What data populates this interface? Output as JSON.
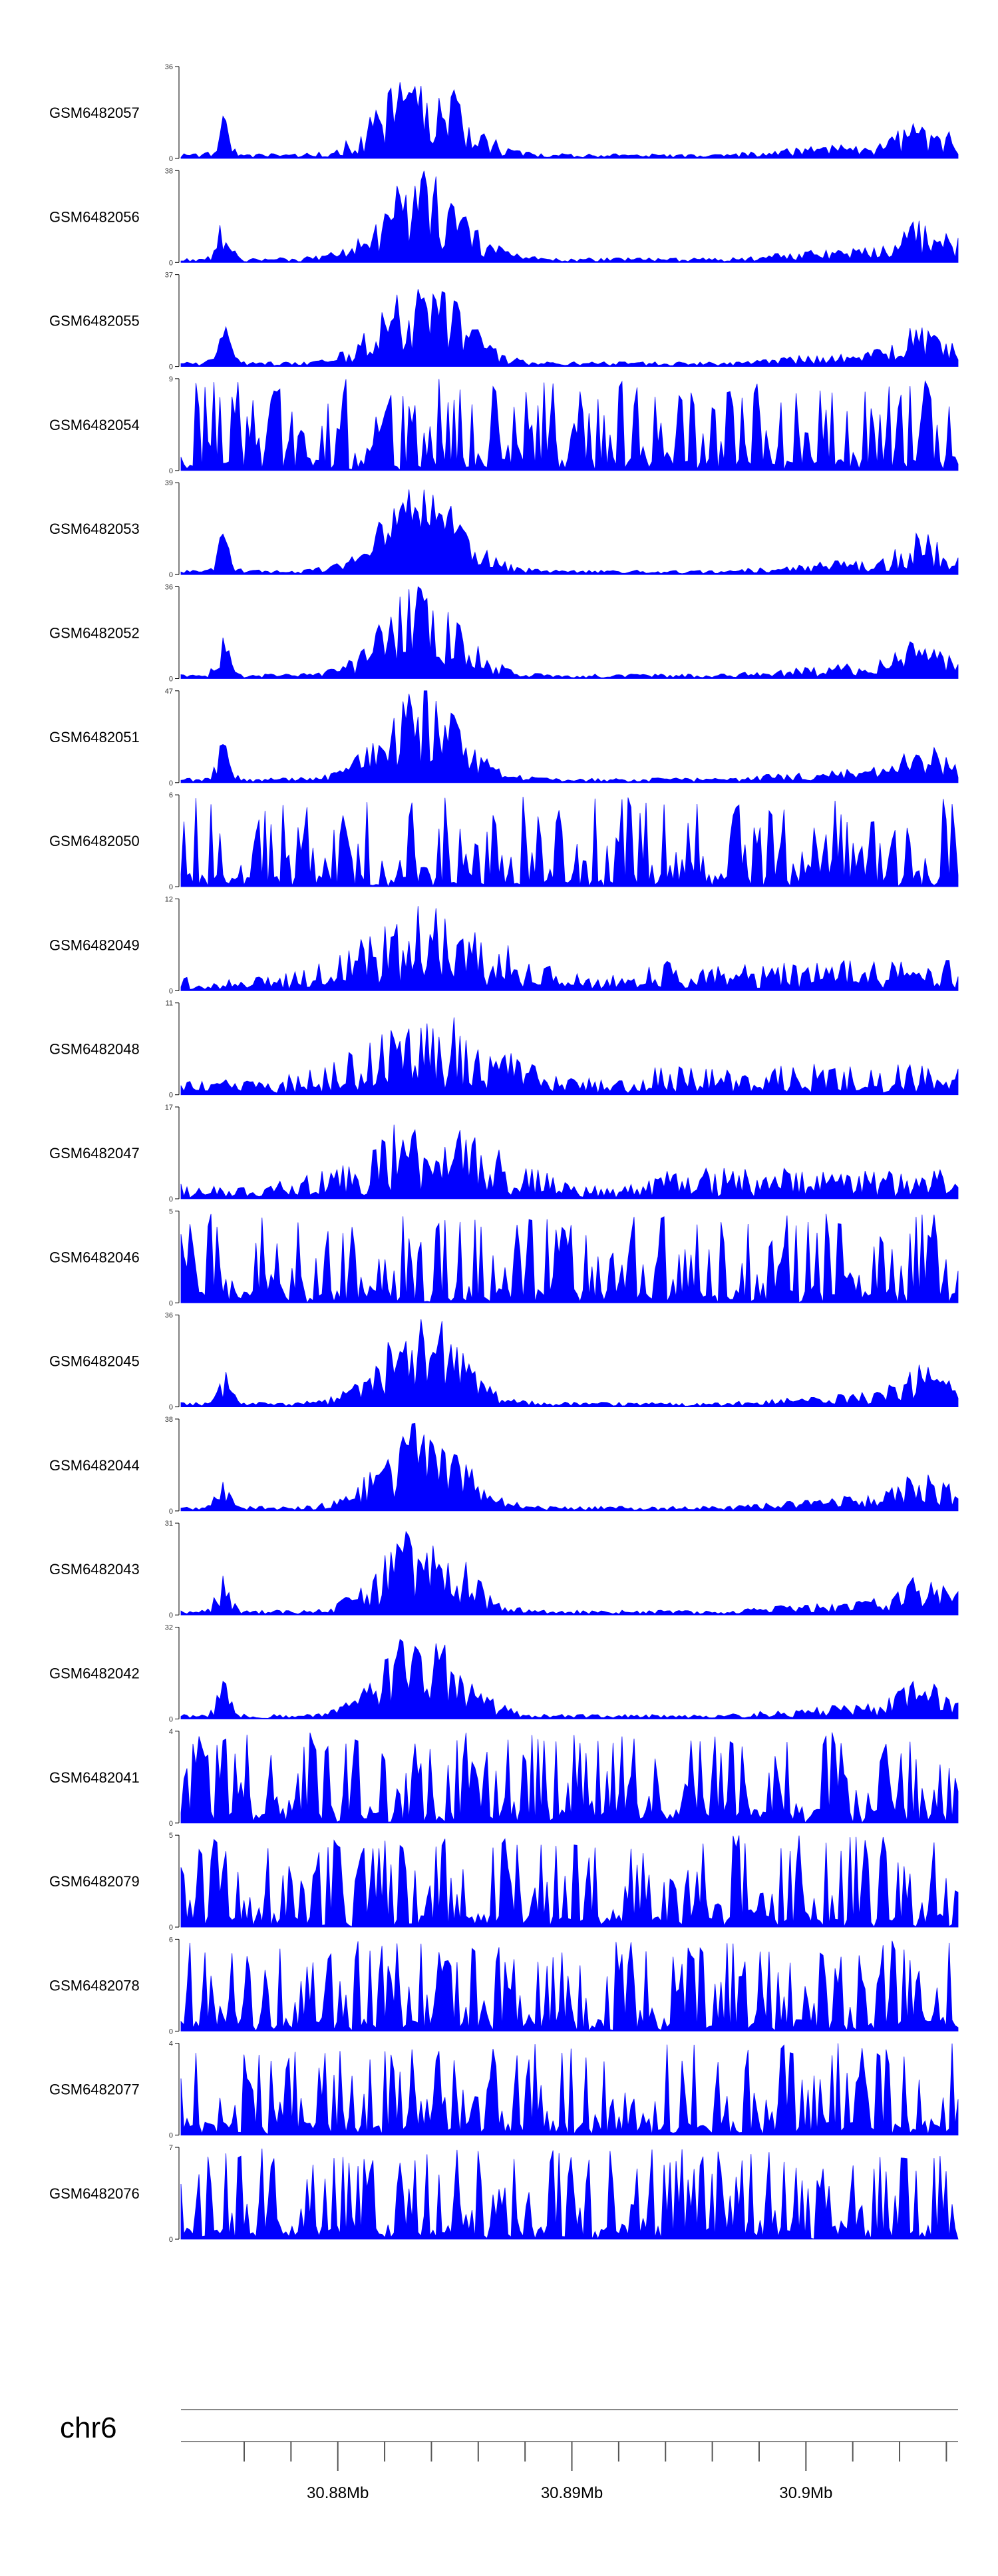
{
  "chart_data": {
    "type": "area",
    "title": "",
    "chromosome": "chr6",
    "x_unit": "Mb",
    "xlim": [
      30.8733,
      30.9065
    ],
    "x_tick_labels": [
      "30.88Mb",
      "30.89Mb",
      "30.9Mb"
    ],
    "x_major_ticks": [
      30.88,
      30.89,
      30.9
    ],
    "x_minor_ticks": [
      30.876,
      30.878,
      30.882,
      30.884,
      30.886,
      30.888,
      30.892,
      30.894,
      30.896,
      30.898,
      30.902,
      30.904,
      30.906
    ],
    "fill_color": "#0000ff",
    "tracks": [
      {
        "name": "GSM6482057",
        "ymin": 0,
        "ymax": 36,
        "profile": "peak",
        "seed": 1
      },
      {
        "name": "GSM6482056",
        "ymin": 0,
        "ymax": 38,
        "profile": "peak",
        "seed": 2
      },
      {
        "name": "GSM6482055",
        "ymin": 0,
        "ymax": 37,
        "profile": "peak",
        "seed": 3
      },
      {
        "name": "GSM6482054",
        "ymin": 0,
        "ymax": 9,
        "profile": "noise",
        "seed": 4
      },
      {
        "name": "GSM6482053",
        "ymin": 0,
        "ymax": 39,
        "profile": "peak",
        "seed": 5
      },
      {
        "name": "GSM6482052",
        "ymin": 0,
        "ymax": 36,
        "profile": "peak",
        "seed": 6
      },
      {
        "name": "GSM6482051",
        "ymin": 0,
        "ymax": 47,
        "profile": "peak",
        "seed": 7
      },
      {
        "name": "GSM6482050",
        "ymin": 0,
        "ymax": 6,
        "profile": "noise",
        "seed": 8
      },
      {
        "name": "GSM6482049",
        "ymin": 0,
        "ymax": 12,
        "profile": "broad",
        "seed": 9
      },
      {
        "name": "GSM6482048",
        "ymin": 0,
        "ymax": 11,
        "profile": "broad",
        "seed": 10
      },
      {
        "name": "GSM6482047",
        "ymin": 0,
        "ymax": 17,
        "profile": "broad",
        "seed": 11
      },
      {
        "name": "GSM6482046",
        "ymin": 0,
        "ymax": 5,
        "profile": "noise",
        "seed": 12
      },
      {
        "name": "GSM6482045",
        "ymin": 0,
        "ymax": 36,
        "profile": "peak",
        "seed": 13
      },
      {
        "name": "GSM6482044",
        "ymin": 0,
        "ymax": 38,
        "profile": "peak",
        "seed": 14
      },
      {
        "name": "GSM6482043",
        "ymin": 0,
        "ymax": 31,
        "profile": "peak",
        "seed": 15
      },
      {
        "name": "GSM6482042",
        "ymin": 0,
        "ymax": 32,
        "profile": "peak",
        "seed": 16
      },
      {
        "name": "GSM6482041",
        "ymin": 0,
        "ymax": 4,
        "profile": "noise",
        "seed": 17
      },
      {
        "name": "GSM6482079",
        "ymin": 0,
        "ymax": 5,
        "profile": "noise",
        "seed": 18
      },
      {
        "name": "GSM6482078",
        "ymin": 0,
        "ymax": 6,
        "profile": "noise",
        "seed": 19
      },
      {
        "name": "GSM6482077",
        "ymin": 0,
        "ymax": 4,
        "profile": "noise",
        "seed": 20
      },
      {
        "name": "GSM6482076",
        "ymin": 0,
        "ymax": 7,
        "profile": "noise",
        "seed": 21
      }
    ]
  }
}
